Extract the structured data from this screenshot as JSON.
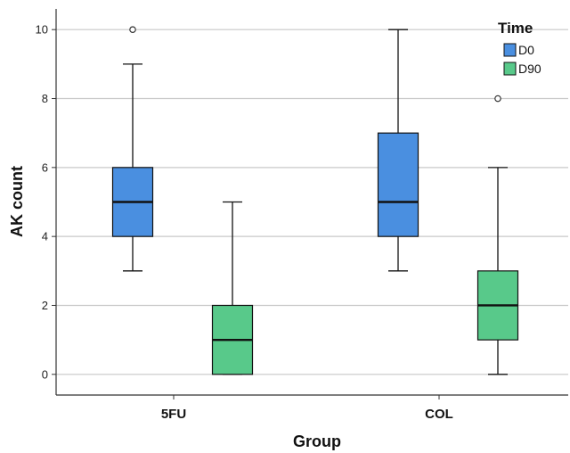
{
  "chart_data": {
    "type": "boxplot",
    "xlabel": "Group",
    "ylabel": "AK count",
    "categories": [
      "5FU",
      "COL"
    ],
    "ylim": [
      -0.6,
      10.6
    ],
    "yticks": [
      0,
      2,
      4,
      6,
      8,
      10
    ],
    "grid": true,
    "legend": {
      "title": "Time",
      "placement": "top-right"
    },
    "series": [
      {
        "name": "D0",
        "color": "#4a8fe0",
        "boxes": [
          {
            "category": "5FU",
            "min": 3,
            "q1": 4,
            "median": 5,
            "q3": 6,
            "max": 9,
            "outliers": [
              10
            ]
          },
          {
            "category": "COL",
            "min": 3,
            "q1": 4,
            "median": 5,
            "q3": 7,
            "max": 10,
            "outliers": []
          }
        ]
      },
      {
        "name": "D90",
        "color": "#58c98a",
        "boxes": [
          {
            "category": "5FU",
            "min": 0,
            "q1": 0,
            "median": 1,
            "q3": 2,
            "max": 5,
            "outliers": []
          },
          {
            "category": "COL",
            "min": 0,
            "q1": 1,
            "median": 2,
            "q3": 3,
            "max": 6,
            "outliers": [
              8
            ]
          }
        ]
      }
    ]
  }
}
